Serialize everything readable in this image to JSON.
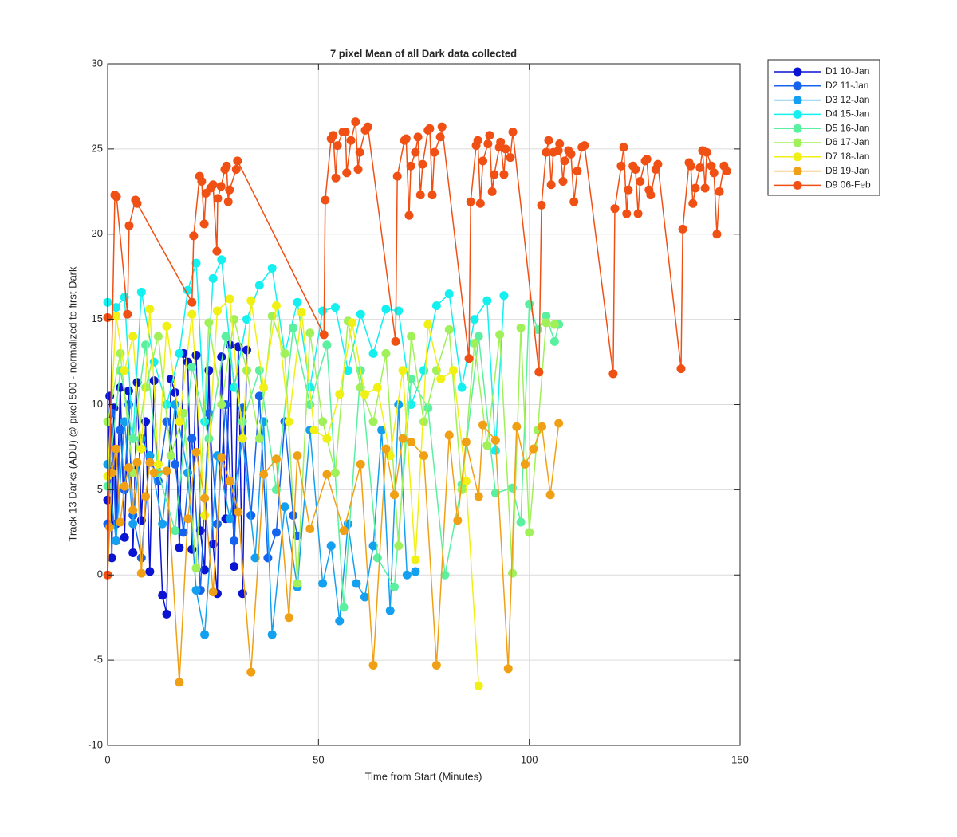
{
  "chart_data": {
    "type": "line",
    "title": "7 pixel Mean of all Dark data collected",
    "xlabel": "Time from Start (Minutes)",
    "ylabel": "Track 13 Darks (ADU) @ pixel 500 - normalized to first Dark",
    "xlim": [
      0,
      150
    ],
    "xticks": [
      0,
      50,
      100,
      150
    ],
    "ylim": [
      -10,
      30
    ],
    "yticks": [
      -10,
      -5,
      0,
      5,
      10,
      15,
      20,
      25,
      30
    ],
    "grid": true,
    "legend": "outside-northeast",
    "series": [
      {
        "name": "D1 10-Jan",
        "color": "#0a14d2",
        "x": [
          0,
          0.5,
          1,
          1.5,
          2,
          3,
          4,
          5,
          6,
          7,
          8,
          9,
          10,
          11,
          13,
          14,
          15,
          16,
          17,
          18,
          19,
          20,
          21,
          22,
          23,
          24,
          25,
          26,
          27,
          28,
          29,
          30,
          31,
          32,
          33
        ],
        "values": [
          4.4,
          10.5,
          1,
          9.8,
          3,
          11,
          2.2,
          10.8,
          1.3,
          11.3,
          3.2,
          9,
          0.2,
          11.4,
          -1.2,
          -2.3,
          11.5,
          10.7,
          1.6,
          13,
          12.5,
          1.5,
          12.9,
          2.6,
          0.3,
          12,
          1.8,
          -1.1,
          12.8,
          3.3,
          13.5,
          0.5,
          13.4,
          -1.1,
          13.2
        ]
      },
      {
        "name": "D2 11-Jan",
        "color": "#1464f0",
        "x": [
          0,
          1,
          2,
          3,
          4,
          5,
          6,
          8,
          10,
          12,
          14,
          16,
          18,
          20,
          22,
          24,
          26,
          28,
          30,
          32,
          34,
          36,
          38,
          40,
          42,
          44,
          45
        ],
        "values": [
          3,
          9.5,
          2,
          8.5,
          5,
          10,
          3.5,
          1,
          7,
          5.5,
          9,
          6.5,
          2.5,
          8,
          -0.9,
          9.5,
          3,
          10,
          2,
          9.8,
          3.5,
          10.5,
          1,
          2.5,
          9,
          3.5,
          2.3
        ]
      },
      {
        "name": "D3 12-Jan",
        "color": "#14a0f0",
        "x": [
          0,
          2,
          4,
          6,
          8,
          10,
          13,
          16,
          19,
          21,
          23,
          26,
          29,
          32,
          35,
          37,
          39,
          42,
          45,
          48,
          51,
          53,
          55,
          57,
          59,
          61,
          63,
          65,
          67,
          69,
          71,
          73
        ],
        "values": [
          6.5,
          2,
          9,
          3,
          8,
          7,
          3,
          10,
          6,
          -0.9,
          -3.5,
          7,
          3.3,
          8,
          1,
          9,
          -3.5,
          4,
          -0.7,
          8.5,
          -0.5,
          1.7,
          -2.7,
          3,
          -0.5,
          -1.3,
          1.7,
          8.5,
          -2.1,
          10,
          0,
          0.2
        ]
      },
      {
        "name": "D4 15-Jan",
        "color": "#14f0f0",
        "x": [
          0,
          2,
          4,
          6,
          8,
          11,
          14,
          17,
          19,
          21,
          23,
          25,
          27,
          30,
          33,
          36,
          39,
          42,
          45,
          48,
          51,
          54,
          57,
          60,
          63,
          66,
          69,
          72,
          75,
          78,
          81,
          84,
          87,
          90,
          92,
          94
        ],
        "values": [
          16,
          15.7,
          16.3,
          8,
          16.6,
          12.5,
          10,
          13,
          16.7,
          18.3,
          9,
          17.4,
          18.5,
          11,
          15,
          17,
          18,
          13,
          16,
          11,
          15.5,
          15.7,
          12,
          15.3,
          13,
          15.6,
          15.5,
          10,
          12,
          15.8,
          16.5,
          11,
          15,
          16.1,
          7.3,
          16.4
        ]
      },
      {
        "name": "D5 16-Jan",
        "color": "#5af0a0",
        "x": [
          0,
          3,
          6,
          9,
          12,
          16,
          20,
          24,
          28,
          32,
          36,
          40,
          44,
          48,
          52,
          56,
          60,
          64,
          68,
          72,
          76,
          80,
          84,
          88,
          92,
          96,
          98,
          100,
          102,
          104,
          106,
          107
        ],
        "values": [
          5.2,
          12,
          8,
          13.5,
          6,
          2.6,
          12.2,
          8,
          14,
          9,
          12,
          5,
          14.5,
          10,
          13.5,
          -1.9,
          12,
          1,
          -0.7,
          11.5,
          9.8,
          0,
          5.3,
          14,
          4.8,
          5.1,
          3.1,
          15.9,
          14.4,
          15.2,
          13.7,
          14.7
        ]
      },
      {
        "name": "D6 17-Jan",
        "color": "#a0f05a",
        "x": [
          0,
          3,
          6,
          9,
          12,
          15,
          18,
          21,
          24,
          27,
          30,
          33,
          36,
          39,
          42,
          45,
          48,
          51,
          54,
          57,
          60,
          63,
          66,
          69,
          72,
          75,
          78,
          81,
          84,
          87,
          90,
          93,
          96,
          98,
          100,
          102,
          104,
          106
        ],
        "values": [
          9,
          13,
          6,
          11,
          14,
          7,
          9.5,
          0.4,
          14.8,
          10,
          15,
          12,
          8,
          15.2,
          13,
          -0.5,
          14.2,
          9,
          6,
          14.9,
          11,
          9,
          13,
          1.7,
          14,
          9,
          12,
          14.4,
          5,
          13.6,
          7.6,
          14.1,
          0.1,
          14.5,
          2.5,
          8.5,
          14.8,
          14.7
        ]
      },
      {
        "name": "D7 18-Jan",
        "color": "#f0f014",
        "x": [
          0,
          2,
          4,
          6,
          8,
          10,
          12,
          14,
          17,
          20,
          23,
          26,
          29,
          32,
          34,
          37,
          40,
          43,
          46,
          49,
          52,
          55,
          58,
          61,
          64,
          67,
          70,
          73,
          76,
          79,
          82,
          85,
          88
        ],
        "values": [
          5.8,
          15.2,
          12,
          14,
          7.4,
          15.6,
          6.5,
          14.6,
          9,
          15.3,
          3.5,
          15.5,
          16.2,
          8,
          16.1,
          11,
          15.8,
          9,
          15.4,
          8.5,
          8,
          10.6,
          14.8,
          10.6,
          11,
          7,
          12,
          0.9,
          14.7,
          11.5,
          12,
          5.5,
          -6.5
        ]
      },
      {
        "name": "D8 19-Jan",
        "color": "#f0a014",
        "x": [
          0,
          0.5,
          1,
          2,
          3,
          4,
          5,
          6,
          7,
          8,
          9,
          10,
          11,
          14,
          17,
          19,
          21,
          23,
          25,
          27,
          29,
          31,
          34,
          37,
          40,
          43,
          45,
          48,
          52,
          56,
          60,
          63,
          66,
          68,
          70,
          72,
          75,
          78,
          81,
          83,
          85,
          88,
          89,
          92,
          95,
          97,
          99,
          101,
          103,
          105,
          107
        ],
        "values": [
          0,
          2.8,
          6,
          7.4,
          3.1,
          5.2,
          6.3,
          3.8,
          6.6,
          0.1,
          4.6,
          6.6,
          6,
          6.1,
          -6.3,
          3.3,
          7.2,
          4.5,
          -1,
          6.9,
          5.5,
          3.7,
          -5.7,
          5.9,
          6.8,
          -2.5,
          7,
          2.7,
          5.9,
          2.6,
          6.5,
          -5.3,
          7.4,
          4.7,
          8,
          7.8,
          7,
          -5.3,
          8.2,
          3.2,
          7.8,
          4.6,
          8.8,
          7.9,
          -5.5,
          8.7,
          6.5,
          7.4,
          8.7,
          4.7,
          8.9
        ]
      },
      {
        "name": "D9 06-Feb",
        "color": "#f05014",
        "x": [
          0,
          0,
          1.7,
          2.1,
          4.7,
          5.1,
          6.6,
          7,
          20,
          20.4,
          21.8,
          22.3,
          22.9,
          23.3,
          24.4,
          25,
          25.9,
          26.1,
          26.9,
          27.8,
          28.2,
          28.6,
          28.9,
          30.5,
          30.8,
          51.3,
          51.6,
          53,
          53.5,
          54.1,
          54.5,
          55.8,
          56.4,
          56.7,
          57.7,
          58.8,
          59.4,
          59.8,
          61.1,
          61.7,
          68.3,
          68.7,
          70.4,
          70.8,
          71.5,
          71.9,
          73,
          73.6,
          74.2,
          74.7,
          76,
          76.4,
          77,
          77.5,
          78.9,
          79.3,
          85.7,
          86.1,
          87.4,
          87.8,
          88.4,
          89,
          90.2,
          90.6,
          91.2,
          91.7,
          92.9,
          93.2,
          94,
          94.4,
          95.5,
          96.1,
          102.3,
          102.9,
          104,
          104.6,
          105.2,
          105.7,
          106.9,
          107.2,
          108,
          108.4,
          109.3,
          109.9,
          110.6,
          111.4,
          112.5,
          113.1,
          119.9,
          120.3,
          121.8,
          122.4,
          123.1,
          123.5,
          124.6,
          125.2,
          125.8,
          126.3,
          127.5,
          127.9,
          128.4,
          128.8,
          130,
          130.5,
          136,
          136.4,
          137.9,
          138.3,
          138.8,
          139.4,
          140.5,
          141.1,
          141.7,
          142.1,
          143.2,
          143.8,
          144.5,
          145.1,
          146.2,
          146.8
        ],
        "values": [
          15.1,
          0,
          22.3,
          22.2,
          15.3,
          20.5,
          22,
          21.8,
          16,
          19.9,
          23.4,
          23.1,
          20.6,
          22.4,
          22.7,
          22.9,
          19,
          22.1,
          22.8,
          23.8,
          24,
          21.9,
          22.6,
          23.8,
          24.3,
          14.1,
          22,
          25.6,
          25.8,
          23.3,
          25.2,
          26,
          26,
          23.6,
          25.5,
          26.6,
          23.8,
          24.8,
          26.1,
          26.3,
          13.7,
          23.4,
          25.5,
          25.6,
          21.1,
          24,
          24.8,
          25.7,
          22.3,
          24.1,
          26.1,
          26.2,
          22.3,
          24.8,
          25.7,
          26.3,
          12.7,
          21.9,
          25.2,
          25.5,
          21.8,
          24.3,
          25.3,
          25.8,
          22.5,
          23.5,
          25.1,
          25.4,
          23.5,
          25,
          24.5,
          26,
          11.9,
          21.7,
          24.8,
          25.5,
          22.9,
          24.8,
          24.9,
          25.3,
          23.1,
          24.3,
          24.9,
          24.7,
          21.9,
          23.7,
          25.1,
          25.2,
          11.8,
          21.5,
          24,
          25.1,
          21.2,
          22.6,
          24,
          23.8,
          21.2,
          23.1,
          24.3,
          24.4,
          22.6,
          22.3,
          23.8,
          24.1,
          12.1,
          20.3,
          24.2,
          24,
          21.8,
          22.7,
          23.9,
          24.9,
          22.7,
          24.8,
          24,
          23.6,
          20,
          22.5,
          24,
          23.7
        ]
      }
    ]
  }
}
